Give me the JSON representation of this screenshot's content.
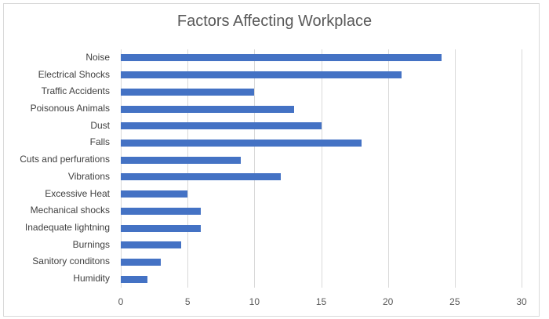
{
  "chart_data": {
    "type": "bar",
    "orientation": "horizontal",
    "title": "Factors Affecting Workplace",
    "xlabel": "",
    "ylabel": "",
    "xlim": [
      0,
      30
    ],
    "x_ticks": [
      "0",
      "5",
      "10",
      "15",
      "20",
      "25",
      "30"
    ],
    "grid": true,
    "legend": null,
    "bar_color": "#4472c4",
    "categories": [
      "Noise",
      "Electrical Shocks",
      "Traffic Accidents",
      "Poisonous Animals",
      "Dust",
      "Falls",
      "Cuts and perfurations",
      "Vibrations",
      "Excessive Heat",
      "Mechanical shocks",
      "Inadequate lightning",
      "Burnings",
      "Sanitory conditons",
      "Humidity"
    ],
    "values": [
      24,
      21,
      10,
      13,
      15,
      18,
      9,
      12,
      5,
      6,
      6,
      4.5,
      3,
      2
    ]
  }
}
